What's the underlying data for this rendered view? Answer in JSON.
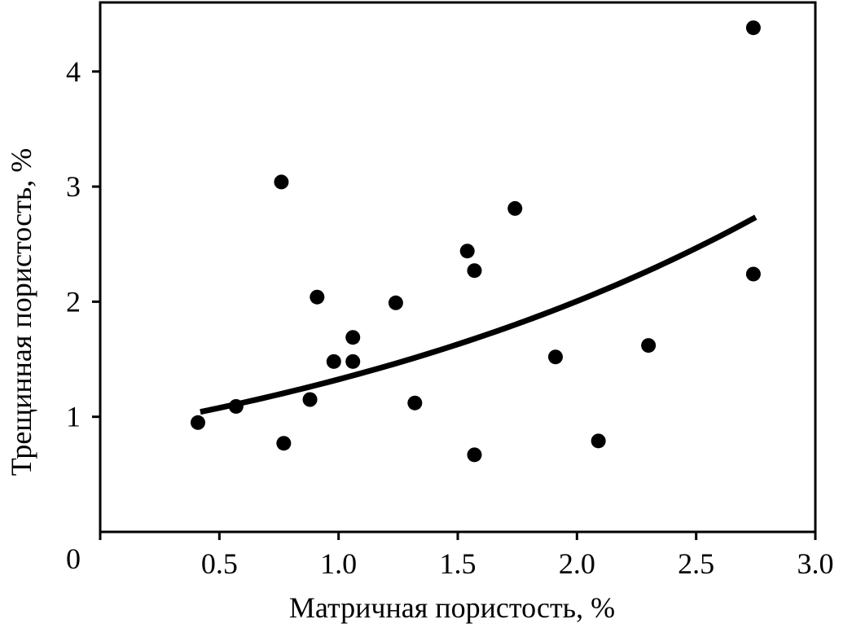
{
  "chart_data": {
    "type": "scatter",
    "title": "",
    "xlabel": "Матричная пористость, %",
    "ylabel": "Трещинная пористость, %",
    "xlim": [
      0,
      3.0
    ],
    "ylim": [
      0,
      4.6
    ],
    "x_ticks": [
      {
        "value": 0.5,
        "label": "0.5"
      },
      {
        "value": 1.0,
        "label": "1.0"
      },
      {
        "value": 1.5,
        "label": "1.5"
      },
      {
        "value": 2.0,
        "label": "2.0"
      },
      {
        "value": 2.5,
        "label": "2.5"
      },
      {
        "value": 3.0,
        "label": "3.0"
      }
    ],
    "y_ticks": [
      {
        "value": 1,
        "label": "1"
      },
      {
        "value": 2,
        "label": "2"
      },
      {
        "value": 3,
        "label": "3"
      },
      {
        "value": 4,
        "label": "4"
      }
    ],
    "origin_label": "0",
    "grid": false,
    "colors": {
      "points": "#000000",
      "trend": "#000000",
      "axes": "#000000"
    },
    "points": [
      {
        "x": 0.41,
        "y": 0.95
      },
      {
        "x": 0.57,
        "y": 1.09
      },
      {
        "x": 0.76,
        "y": 3.04
      },
      {
        "x": 0.77,
        "y": 0.77
      },
      {
        "x": 0.88,
        "y": 1.15
      },
      {
        "x": 0.91,
        "y": 2.04
      },
      {
        "x": 0.98,
        "y": 1.48
      },
      {
        "x": 1.06,
        "y": 1.69
      },
      {
        "x": 1.06,
        "y": 1.48
      },
      {
        "x": 1.24,
        "y": 1.99
      },
      {
        "x": 1.32,
        "y": 1.12
      },
      {
        "x": 1.54,
        "y": 2.44
      },
      {
        "x": 1.57,
        "y": 2.27
      },
      {
        "x": 1.57,
        "y": 0.67
      },
      {
        "x": 1.74,
        "y": 2.81
      },
      {
        "x": 1.91,
        "y": 1.52
      },
      {
        "x": 2.09,
        "y": 0.79
      },
      {
        "x": 2.3,
        "y": 1.62
      },
      {
        "x": 2.74,
        "y": 4.38
      },
      {
        "x": 2.74,
        "y": 2.24
      }
    ],
    "trend_line": {
      "type": "exponential",
      "x_range": [
        0.42,
        2.75
      ],
      "a": 0.876,
      "b": 0.4139
    }
  }
}
